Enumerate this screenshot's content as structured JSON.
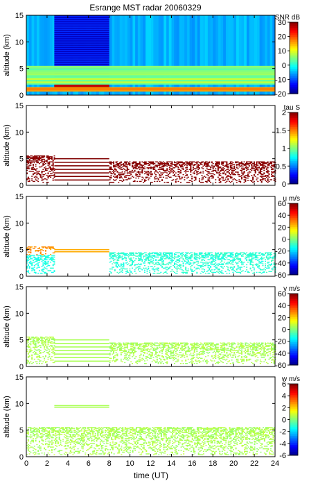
{
  "figure": {
    "title": "Esrange MST radar 20060329",
    "xlabel": "time (UT)"
  },
  "chart_data": [
    {
      "type": "heatmap",
      "panel": "snr",
      "title": "Esrange MST radar 20060329",
      "ylabel": "altitude (km)",
      "xlabel": "",
      "x_range": [
        0,
        24
      ],
      "y_range": [
        0,
        15
      ],
      "x_ticks": [
        0,
        2,
        4,
        6,
        8,
        10,
        12,
        14,
        16,
        18,
        20,
        22,
        24
      ],
      "y_ticks": [
        0,
        5,
        10,
        15
      ],
      "colorbar": {
        "label": "SNR dB",
        "range": [
          -20,
          30
        ],
        "ticks": [
          -20,
          -10,
          0,
          10,
          20,
          30
        ]
      },
      "colormap": "jet",
      "features": [
        {
          "time": [
            0,
            24
          ],
          "altitude": [
            0,
            15
          ],
          "value_dB": -5,
          "note": "background noise"
        },
        {
          "time": [
            2.7,
            8
          ],
          "altitude": [
            1.5,
            15
          ],
          "value_dB": -14,
          "note": "horizontal striped block"
        },
        {
          "time": [
            2.7,
            8
          ],
          "altitude": [
            1.3,
            2
          ],
          "value_dB": 30,
          "note": "strong low layer"
        },
        {
          "time": [
            0,
            24
          ],
          "altitude": [
            0.7,
            1.5
          ],
          "value_dB": 20,
          "note": "boundary layer echo"
        },
        {
          "time": [
            0,
            24
          ],
          "altitude": [
            2,
            5.5
          ],
          "value_dB": 5,
          "note": "lower troposphere echo"
        }
      ]
    },
    {
      "type": "heatmap",
      "panel": "tau",
      "ylabel": "altitude (km)",
      "xlabel": "",
      "x_range": [
        0,
        24
      ],
      "y_range": [
        0,
        15
      ],
      "x_ticks": [
        0,
        2,
        4,
        6,
        8,
        10,
        12,
        14,
        16,
        18,
        20,
        22,
        24
      ],
      "y_ticks": [
        0,
        5,
        10,
        15
      ],
      "colorbar": {
        "label": "tau S",
        "range": [
          0,
          2
        ],
        "ticks": [
          0,
          0.5,
          1,
          1.5,
          2
        ]
      },
      "colormap": "jet",
      "features": [
        {
          "time": [
            0,
            2.7
          ],
          "altitude": [
            0.5,
            5.5
          ],
          "value": 2
        },
        {
          "time": [
            2.7,
            8
          ],
          "altitude": [
            1,
            5
          ],
          "value": 2,
          "note": "horizontal lines"
        },
        {
          "time": [
            8,
            24
          ],
          "altitude": [
            0.5,
            4.5
          ],
          "value": 2
        }
      ]
    },
    {
      "type": "heatmap",
      "panel": "u",
      "ylabel": "altitude (km)",
      "xlabel": "",
      "x_range": [
        0,
        24
      ],
      "y_range": [
        0,
        15
      ],
      "x_ticks": [
        0,
        2,
        4,
        6,
        8,
        10,
        12,
        14,
        16,
        18,
        20,
        22,
        24
      ],
      "y_ticks": [
        0,
        5,
        10,
        15
      ],
      "colorbar": {
        "label": "u m/s",
        "range": [
          -60,
          60
        ],
        "ticks": [
          -60,
          -40,
          -20,
          0,
          20,
          40,
          60
        ]
      },
      "colormap": "jet",
      "features": [
        {
          "time": [
            0,
            2.7
          ],
          "altitude": [
            4,
            5.5
          ],
          "value": 28
        },
        {
          "time": [
            0,
            2.7
          ],
          "altitude": [
            0.5,
            4
          ],
          "value": -12
        },
        {
          "time": [
            2.7,
            8
          ],
          "altitude": [
            4.6,
            5
          ],
          "value": 25,
          "note": "horizontal lines"
        },
        {
          "time": [
            8,
            24
          ],
          "altitude": [
            0.5,
            4.5
          ],
          "value": -10
        }
      ]
    },
    {
      "type": "heatmap",
      "panel": "v",
      "ylabel": "altitude (km)",
      "xlabel": "",
      "x_range": [
        0,
        24
      ],
      "y_range": [
        0,
        15
      ],
      "x_ticks": [
        0,
        2,
        4,
        6,
        8,
        10,
        12,
        14,
        16,
        18,
        20,
        22,
        24
      ],
      "y_ticks": [
        0,
        5,
        10,
        15
      ],
      "colorbar": {
        "label": "v m/s",
        "range": [
          -60,
          60
        ],
        "ticks": [
          -60,
          -40,
          -20,
          0,
          20,
          40,
          60
        ]
      },
      "colormap": "jet",
      "features": [
        {
          "time": [
            0,
            2.7
          ],
          "altitude": [
            0.5,
            5.5
          ],
          "value": 5
        },
        {
          "time": [
            2.7,
            8
          ],
          "altitude": [
            1,
            5
          ],
          "value": 5,
          "note": "horizontal lines"
        },
        {
          "time": [
            8,
            24
          ],
          "altitude": [
            0.5,
            4.5
          ],
          "value": 5
        }
      ]
    },
    {
      "type": "heatmap",
      "panel": "w",
      "ylabel": "altitude (km)",
      "xlabel": "time (UT)",
      "x_range": [
        0,
        24
      ],
      "y_range": [
        0,
        15
      ],
      "x_ticks": [
        0,
        2,
        4,
        6,
        8,
        10,
        12,
        14,
        16,
        18,
        20,
        22,
        24
      ],
      "y_ticks": [
        0,
        5,
        10,
        15
      ],
      "colorbar": {
        "label": "w m/s",
        "range": [
          -6,
          6
        ],
        "ticks": [
          -6,
          -4,
          -2,
          0,
          2,
          4,
          6
        ]
      },
      "colormap": "jet",
      "features": [
        {
          "time": [
            0,
            24
          ],
          "altitude": [
            0.3,
            5.5
          ],
          "value": 0.5
        },
        {
          "time": [
            2.7,
            8
          ],
          "altitude": [
            9.3,
            9.6
          ],
          "value": 0.5,
          "note": "horizontal line"
        }
      ]
    }
  ]
}
